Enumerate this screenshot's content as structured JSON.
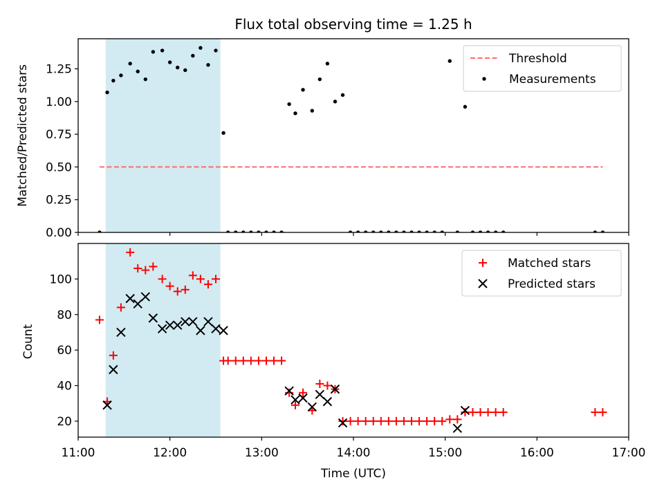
{
  "colors": {
    "span": "#add8e6",
    "threshold": "#ff6b6b",
    "matched": "#ff0000",
    "predicted": "#000000",
    "measurement": "#000000"
  },
  "chart_data": [
    {
      "type": "scatter",
      "title": "Flux total observing time = 1.25 h",
      "xlabel": "",
      "ylabel": "Matched/Predicted stars",
      "xlim": [
        "11:00",
        "17:00"
      ],
      "ylim": [
        0,
        1.48
      ],
      "y_ticks": [
        "0.00",
        "0.25",
        "0.50",
        "0.75",
        "1.00",
        "1.25"
      ],
      "shaded_span": [
        "11:18",
        "12:33"
      ],
      "legend_position": "upper right",
      "legend": [
        "Threshold",
        "Measurements"
      ],
      "threshold": {
        "name": "Threshold",
        "value": 0.5,
        "x_range": [
          "11:14",
          "16:43"
        ],
        "style": "dashed"
      },
      "series": [
        {
          "name": "Measurements",
          "marker": "dot",
          "x": [
            "11:14",
            "11:19",
            "11:23",
            "11:28",
            "11:34",
            "11:39",
            "11:44",
            "11:49",
            "11:55",
            "12:00",
            "12:05",
            "12:10",
            "12:15",
            "12:20",
            "12:25",
            "12:30",
            "12:35",
            "12:38",
            "12:43",
            "12:48",
            "12:53",
            "12:58",
            "13:03",
            "13:08",
            "13:13",
            "13:18",
            "13:22",
            "13:27",
            "13:33",
            "13:38",
            "13:43",
            "13:48",
            "13:53",
            "13:58",
            "14:03",
            "14:08",
            "14:13",
            "14:18",
            "14:23",
            "14:28",
            "14:33",
            "14:38",
            "14:43",
            "14:48",
            "14:53",
            "14:58",
            "15:03",
            "15:08",
            "15:13",
            "15:18",
            "15:23",
            "15:28",
            "15:33",
            "15:38",
            "16:38",
            "16:43"
          ],
          "y": [
            0,
            1.07,
            1.16,
            1.2,
            1.29,
            1.23,
            1.17,
            1.38,
            1.39,
            1.3,
            1.26,
            1.24,
            1.35,
            1.41,
            1.28,
            1.39,
            0.76,
            0,
            0,
            0,
            0,
            0,
            0,
            0,
            0,
            0.98,
            0.91,
            1.09,
            0.93,
            1.17,
            1.29,
            1.0,
            1.05,
            0,
            0,
            0,
            0,
            0,
            0,
            0,
            0,
            0,
            0,
            0,
            0,
            0,
            1.31,
            0,
            0.96,
            0,
            0,
            0,
            0,
            0,
            0,
            0
          ]
        }
      ]
    },
    {
      "type": "scatter",
      "title": "",
      "xlabel": "Time (UTC)",
      "ylabel": "Count",
      "xlim": [
        "11:00",
        "17:00"
      ],
      "ylim": [
        11,
        120
      ],
      "x_ticks": [
        "11:00",
        "12:00",
        "13:00",
        "14:00",
        "15:00",
        "16:00",
        "17:00"
      ],
      "y_ticks": [
        "20",
        "40",
        "60",
        "80",
        "100"
      ],
      "shaded_span": [
        "11:18",
        "12:33"
      ],
      "legend_position": "upper right",
      "legend": [
        "Matched stars",
        "Predicted stars"
      ],
      "series": [
        {
          "name": "Matched stars",
          "marker": "+",
          "x": [
            "11:14",
            "11:19",
            "11:23",
            "11:28",
            "11:34",
            "11:39",
            "11:44",
            "11:49",
            "11:55",
            "12:00",
            "12:05",
            "12:10",
            "12:15",
            "12:20",
            "12:25",
            "12:30",
            "12:35",
            "12:38",
            "12:43",
            "12:48",
            "12:53",
            "12:58",
            "13:03",
            "13:08",
            "13:13",
            "13:18",
            "13:22",
            "13:27",
            "13:33",
            "13:38",
            "13:43",
            "13:48",
            "13:53",
            "13:58",
            "14:03",
            "14:08",
            "14:13",
            "14:18",
            "14:23",
            "14:28",
            "14:33",
            "14:38",
            "14:43",
            "14:48",
            "14:53",
            "14:58",
            "15:03",
            "15:08",
            "15:13",
            "15:18",
            "15:23",
            "15:28",
            "15:33",
            "15:38",
            "16:38",
            "16:43"
          ],
          "y": [
            77,
            31,
            57,
            84,
            115,
            106,
            105,
            107,
            100,
            96,
            93,
            94,
            102,
            100,
            97,
            100,
            54,
            54,
            54,
            54,
            54,
            54,
            54,
            54,
            54,
            36,
            29,
            36,
            26,
            41,
            40,
            38,
            20,
            20,
            20,
            20,
            20,
            20,
            20,
            20,
            20,
            20,
            20,
            20,
            20,
            20,
            21,
            21,
            25,
            25,
            25,
            25,
            25,
            25,
            25,
            25
          ]
        },
        {
          "name": "Predicted stars",
          "marker": "x",
          "x": [
            "11:19",
            "11:23",
            "11:28",
            "11:34",
            "11:39",
            "11:44",
            "11:49",
            "11:55",
            "12:00",
            "12:05",
            "12:10",
            "12:15",
            "12:20",
            "12:25",
            "12:30",
            "12:35",
            "13:18",
            "13:22",
            "13:27",
            "13:33",
            "13:38",
            "13:43",
            "13:48",
            "13:53",
            "15:08",
            "15:13"
          ],
          "y": [
            29,
            49,
            70,
            89,
            86,
            90,
            78,
            72,
            74,
            74,
            76,
            76,
            71,
            76,
            72,
            71,
            37,
            32,
            33,
            28,
            35,
            31,
            38,
            19,
            16,
            26
          ]
        }
      ]
    }
  ]
}
